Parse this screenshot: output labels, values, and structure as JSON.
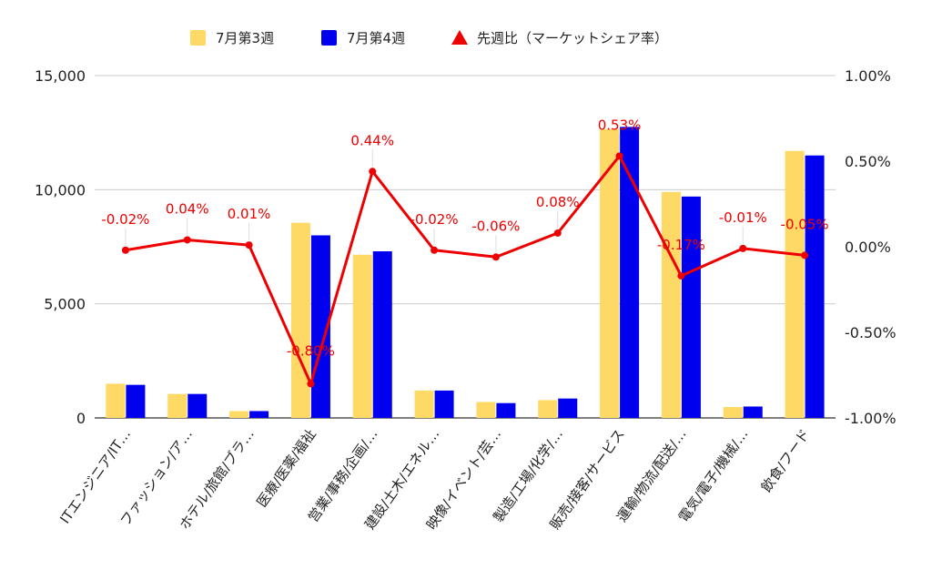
{
  "chart_data": {
    "type": "bar",
    "categories": [
      "ITエンジニア/IT…",
      "ファッション/ア…",
      "ホテル/旅館/ブラ…",
      "医療/医薬/福祉",
      "営業/事務/企画/…",
      "建設/土木/エネル…",
      "映像/イベント/芸…",
      "製造/工場/化学/…",
      "販売/接客/サービス",
      "運輸/物流/配送/…",
      "電気/電子/機械/…",
      "飲食/フード"
    ],
    "series": [
      {
        "name": "7月第3週",
        "type": "bar",
        "axis": "left",
        "color": "#FFD966",
        "values": [
          1500,
          1050,
          300,
          8550,
          7150,
          1200,
          700,
          780,
          12650,
          9900,
          480,
          11700
        ]
      },
      {
        "name": "7月第4週",
        "type": "bar",
        "axis": "left",
        "color": "#0000EE",
        "values": [
          1450,
          1050,
          300,
          8000,
          7300,
          1200,
          650,
          850,
          12750,
          9700,
          500,
          11500
        ]
      },
      {
        "name": "先週比（マーケットシェア率）",
        "type": "line",
        "axis": "right",
        "color": "#EE0000",
        "marker": "triangle",
        "values": [
          -0.02,
          0.04,
          0.01,
          -0.8,
          0.44,
          -0.02,
          -0.06,
          0.08,
          0.53,
          -0.17,
          -0.01,
          -0.05
        ],
        "labels": [
          "-0.02%",
          "0.04%",
          "0.01%",
          "-0.80%",
          "0.44%",
          "-0.02%",
          "-0.06%",
          "0.08%",
          "0.53%",
          "-0.17%",
          "-0.01%",
          "-0.05%"
        ]
      }
    ],
    "y_left": {
      "range": [
        0,
        15000
      ],
      "ticks": [
        0,
        5000,
        10000,
        15000
      ],
      "tick_labels": [
        "0",
        "5,000",
        "10,000",
        "15,000"
      ]
    },
    "y_right": {
      "range": [
        -1.0,
        1.0
      ],
      "ticks": [
        -1.0,
        -0.5,
        0.0,
        0.5,
        1.0
      ],
      "tick_labels": [
        "-1.00%",
        "-0.50%",
        "0.00%",
        "0.50%",
        "1.00%"
      ]
    },
    "grid": true,
    "legend_position": "top",
    "title": "",
    "xlabel": "",
    "ylabel": ""
  }
}
